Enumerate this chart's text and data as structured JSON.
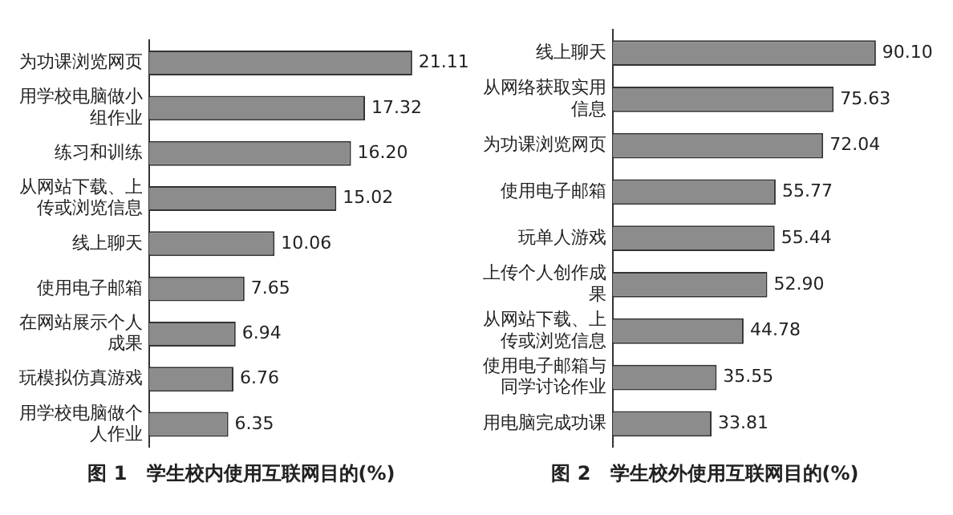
{
  "chart_data": [
    {
      "type": "bar",
      "orientation": "horizontal",
      "title": "图 1　学生校内使用互联网目的(%)",
      "categories": [
        "为功课浏览网页",
        "用学校电脑做小组作业",
        "练习和训练",
        "从网站下载、上传或浏览信息",
        "线上聊天",
        "使用电子邮箱",
        "在网站展示个人成果",
        "玩模拟仿真游戏",
        "用学校电脑做个人作业"
      ],
      "values": [
        21.11,
        17.32,
        16.2,
        15.02,
        10.06,
        7.65,
        6.94,
        6.76,
        6.35
      ],
      "value_labels": [
        "21.11",
        "17.32",
        "16.20",
        "15.02",
        "10.06",
        "7.65",
        "6.94",
        "6.76",
        "6.35"
      ],
      "color": "#8c8c8c"
    },
    {
      "type": "bar",
      "orientation": "horizontal",
      "title": "图 2　学生校外使用互联网目的(%)",
      "categories": [
        "线上聊天",
        "从网络获取实用信息",
        "为功课浏览网页",
        "使用电子邮箱",
        "玩单人游戏",
        "上传个人创作成果",
        "从网站下载、上传或浏览信息",
        "使用电子邮箱与同学讨论作业",
        "用电脑完成功课"
      ],
      "values": [
        90.1,
        75.63,
        72.04,
        55.77,
        55.44,
        52.9,
        44.78,
        35.55,
        33.81
      ],
      "value_labels": [
        "90.10",
        "75.63",
        "72.04",
        "55.77",
        "55.44",
        "52.90",
        "44.78",
        "35.55",
        "33.81"
      ],
      "color": "#8c8c8c"
    }
  ]
}
